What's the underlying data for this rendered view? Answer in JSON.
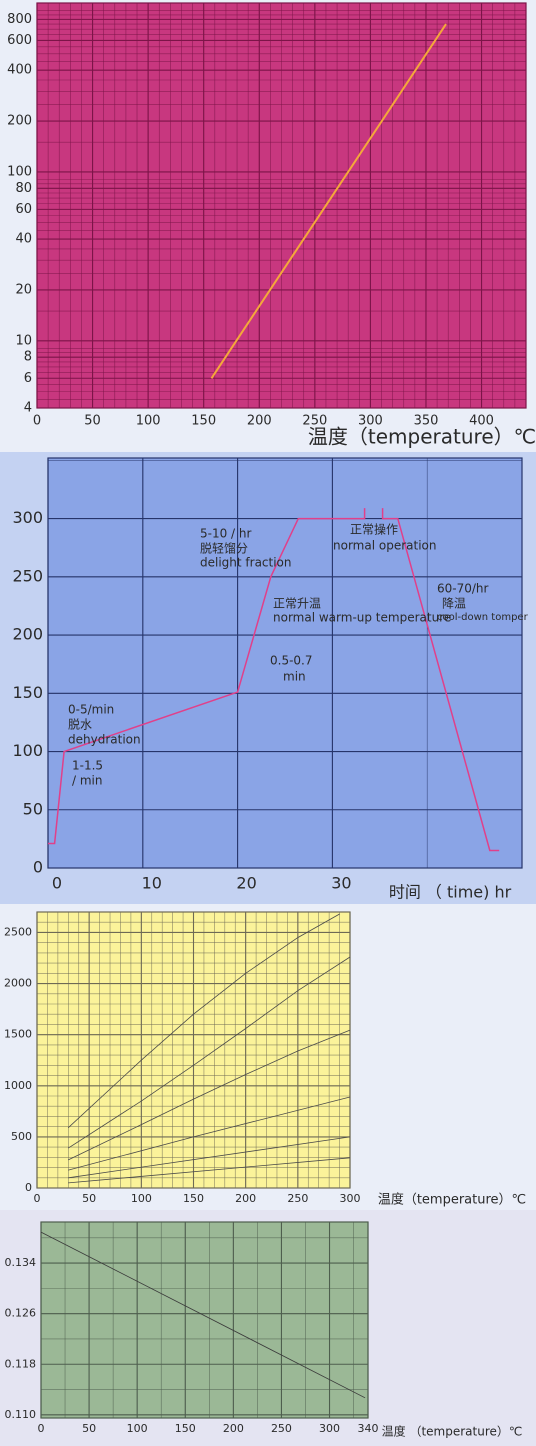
{
  "chart_data": [
    {
      "type": "line",
      "log_y": true,
      "x_label": "温度（temperature）℃",
      "background": "#c8377f",
      "grid_color": "#7c1448",
      "color": "#f4a83a",
      "x": [
        157,
        368
      ],
      "values": [
        6,
        750
      ],
      "xlim": [
        0,
        440
      ],
      "xticks": [
        0,
        50,
        100,
        150,
        200,
        250,
        300,
        350,
        400
      ],
      "ylim": [
        4,
        1000
      ],
      "yticks": [
        4,
        6,
        8,
        10,
        20,
        40,
        60,
        80,
        100,
        200,
        400,
        600,
        800
      ],
      "grid": true
    },
    {
      "type": "line",
      "x_label": "时间 （ time) hr",
      "annotations": [
        "5-10 / hr",
        "脱轻馏分",
        "delight fraction",
        "正常操作",
        "normal operation",
        "正常升温",
        "normal warm-up temperature",
        "0.5-0.7",
        "min",
        "60-70/hr",
        "降温",
        "cool-down tomper",
        "0-5/min",
        "脱水",
        "dehydration",
        "1-1.5",
        "/ min"
      ],
      "background": "#8aa4e6",
      "grid_color": "#26346a",
      "color": "#e0408a",
      "x": [
        0,
        0.7,
        1.7,
        20,
        23.5,
        26.4,
        33.4,
        33.4,
        34.4,
        35.3,
        35.3,
        36.9,
        46.6,
        47.6
      ],
      "values": [
        21,
        21,
        100,
        151,
        250,
        300,
        300,
        309,
        null,
        309,
        300,
        300,
        15,
        15
      ],
      "xlim": [
        0,
        50
      ],
      "xticks": [
        0,
        10,
        20,
        30
      ],
      "ylim": [
        0,
        352
      ],
      "yticks": [
        0,
        50,
        100,
        150,
        200,
        250,
        300
      ],
      "grid": true
    },
    {
      "type": "line",
      "x_label": "温度（temperature）℃",
      "background": "#fbf39a",
      "grid_color": "#6e6a55",
      "color": "#4a4a4a",
      "series": [
        {
          "x": [
            30,
            100,
            150,
            200,
            250,
            290
          ],
          "values": [
            590,
            1250,
            1700,
            2100,
            2450,
            2680
          ]
        },
        {
          "x": [
            30,
            100,
            150,
            200,
            250,
            300
          ],
          "values": [
            390,
            850,
            1200,
            1560,
            1930,
            2260
          ]
        },
        {
          "x": [
            30,
            100,
            150,
            200,
            250,
            300
          ],
          "values": [
            275,
            620,
            870,
            1110,
            1340,
            1545
          ]
        },
        {
          "x": [
            30,
            150,
            300
          ],
          "values": [
            175,
            500,
            890
          ]
        },
        {
          "x": [
            30,
            300
          ],
          "values": [
            100,
            500
          ]
        },
        {
          "x": [
            30,
            300
          ],
          "values": [
            50,
            295
          ]
        }
      ],
      "xlim": [
        0,
        300
      ],
      "xticks": [
        0,
        50,
        100,
        150,
        200,
        250,
        300
      ],
      "ylim": [
        0,
        2700
      ],
      "yticks": [
        0,
        500,
        1000,
        1500,
        2000,
        2500
      ],
      "grid": true
    },
    {
      "type": "line",
      "x_label": "温度 （temperature）℃",
      "background": "#9bb896",
      "grid_color": "#4e5e4e",
      "color": "#3a3a3a",
      "x": [
        0,
        337
      ],
      "values": [
        0.1389,
        0.1127
      ],
      "xlim": [
        0,
        340
      ],
      "xticks": [
        0,
        50,
        100,
        150,
        200,
        250,
        300,
        340
      ],
      "ylim": [
        0.1095,
        0.1405
      ],
      "yticks": [
        {
          "value": 0.11,
          "label": "0.110"
        },
        0.118,
        0.126,
        0.134
      ],
      "grid": true
    }
  ]
}
